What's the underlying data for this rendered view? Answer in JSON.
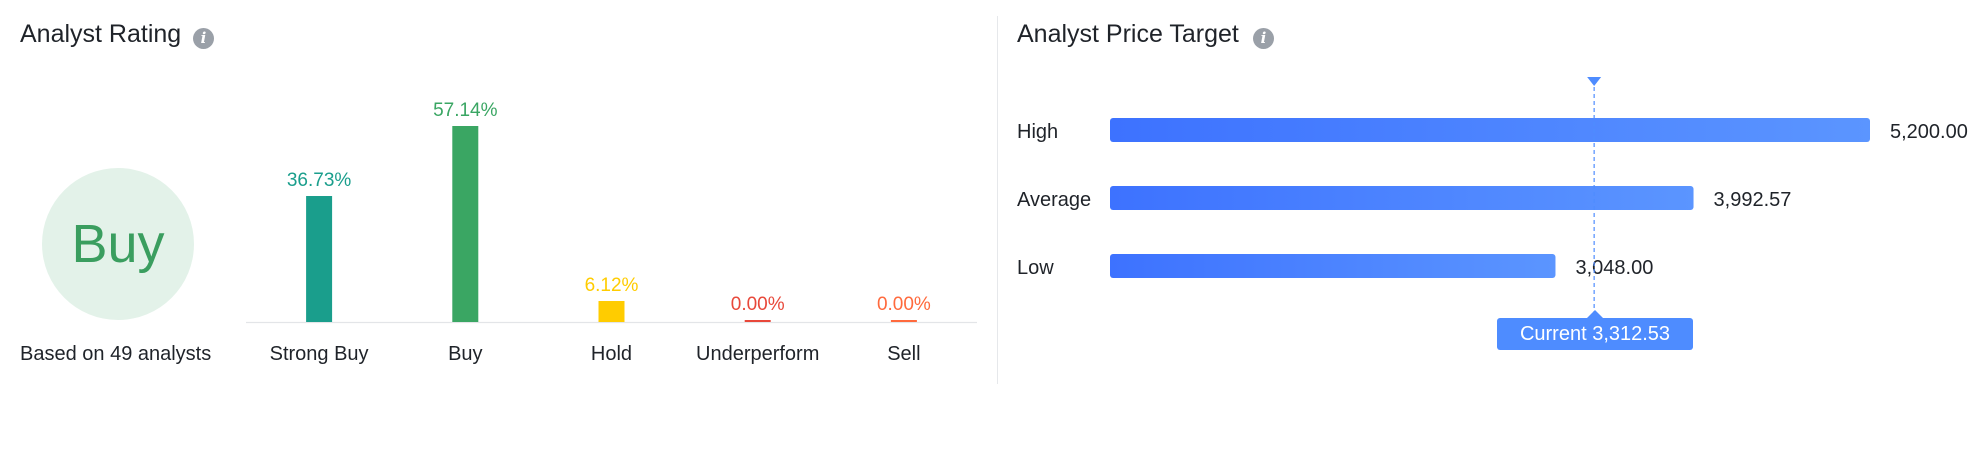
{
  "rating_panel": {
    "title": "Analyst Rating",
    "consensus": "Buy",
    "based_on": "Based on 49 analysts"
  },
  "target_panel": {
    "title": "Analyst Price Target",
    "current_prefix": "Current",
    "current_value": "3,312.53"
  },
  "colors": {
    "strong_buy": "#1a9e8c",
    "buy": "#3aa663",
    "hold": "#ffcc00",
    "underperform": "#e8483a",
    "sell": "#ff6a3d",
    "target_bar": "#4e8cff",
    "marker": "#4e8cff"
  },
  "chart_data": [
    {
      "type": "bar",
      "categories": [
        "Strong Buy",
        "Buy",
        "Hold",
        "Underperform",
        "Sell"
      ],
      "values": [
        36.73,
        57.14,
        6.12,
        0.0,
        0.0
      ],
      "value_labels": [
        "36.73%",
        "57.14%",
        "6.12%",
        "0.00%",
        "0.00%"
      ],
      "ylim": [
        0,
        57.14
      ]
    },
    {
      "type": "bar",
      "orientation": "horizontal",
      "categories": [
        "High",
        "Average",
        "Low"
      ],
      "values": [
        5200.0,
        3992.57,
        3048.0
      ],
      "value_labels": [
        "5,200.00",
        "3,992.57",
        "3,048.00"
      ],
      "current": 3312.53
    }
  ]
}
